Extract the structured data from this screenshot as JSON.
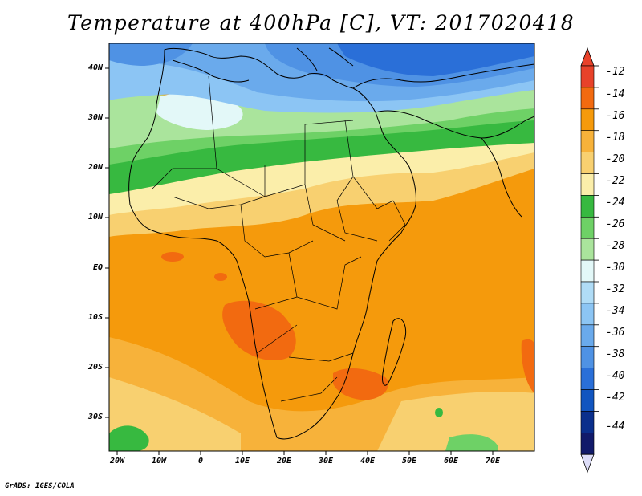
{
  "title": "Temperature at 400hPa [C], VT: 2017020418",
  "credit": "GrADS: IGES/COLA",
  "map": {
    "lat_labels": [
      "40N",
      "30N",
      "20N",
      "10N",
      "EQ",
      "10S",
      "20S",
      "30S"
    ],
    "lon_labels": [
      "20W",
      "10W",
      "0",
      "10E",
      "20E",
      "30E",
      "40E",
      "50E",
      "60E",
      "70E"
    ]
  },
  "colorbar": {
    "labels": [
      "-12",
      "-14",
      "-16",
      "-18",
      "-20",
      "-22",
      "-24",
      "-26",
      "-28",
      "-30",
      "-32",
      "-34",
      "-36",
      "-38",
      "-40",
      "-42",
      "-44"
    ],
    "colors": [
      "#e8422a",
      "#f26a10",
      "#f59a0c",
      "#f7b23a",
      "#f8d070",
      "#fbeeaa",
      "#37b940",
      "#6ed166",
      "#aae49c",
      "#e3f8f8",
      "#b0dcf6",
      "#8cc5f4",
      "#6aaaec",
      "#4f92e4",
      "#2a6fd8",
      "#1255c0",
      "#0a2f8c",
      "#111a6a"
    ],
    "top_color": "#e8422a",
    "bottom_color": "#ddddf8"
  }
}
